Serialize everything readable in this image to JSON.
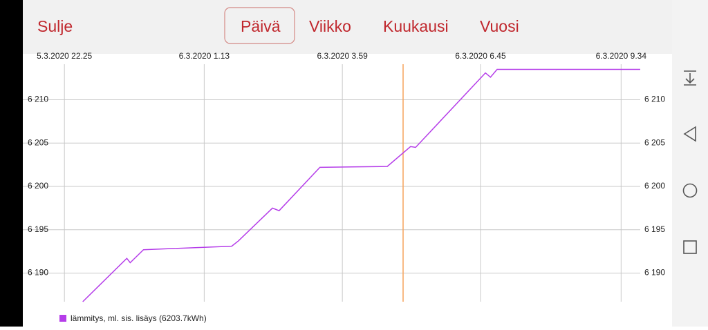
{
  "app_bar": {
    "close": "Sulje",
    "tabs": [
      "Päivä",
      "Viikko",
      "Kuukausi",
      "Vuosi"
    ],
    "selected_tab": 0
  },
  "chart_data": {
    "type": "line",
    "xlim": [
      "5.3.2020 21.35",
      "6.3.2020 9.57"
    ],
    "xticks": [
      "5.3.2020 22.25",
      "6.3.2020 1.13",
      "6.3.2020 3.59",
      "6.3.2020 6.45",
      "6.3.2020 9.34"
    ],
    "ylim": [
      6186.7,
      6214.1
    ],
    "yticks": [
      {
        "value": 6190,
        "label": "6 190"
      },
      {
        "value": 6195,
        "label": "6 195"
      },
      {
        "value": 6200,
        "label": "6 200"
      },
      {
        "value": 6205,
        "label": "6 205"
      },
      {
        "value": 6210,
        "label": "6 210"
      }
    ],
    "grid": true,
    "cursor": "6.3.2020 5.12",
    "cursor_color": "#f5a35c",
    "x": [
      "5.3.2020 22.47",
      "5.3.2020 23.40",
      "5.3.2020 23.44",
      "6.3.2020 0.00",
      "6.3.2020 1.46",
      "6.3.2020 1.54",
      "6.3.2020 2.35",
      "6.3.2020 2.43",
      "6.3.2020 3.32",
      "6.3.2020 4.53",
      "6.3.2020 5.21",
      "6.3.2020 5.27",
      "6.3.2020 6.51",
      "6.3.2020 6.57",
      "6.3.2020 7.05",
      "6.3.2020 9.57"
    ],
    "series": [
      {
        "name": "lämmitys, ml. sis. lisäys (6203.7kWh)",
        "color": "#b53de9",
        "values": [
          6186.7,
          6191.7,
          6191.2,
          6192.7,
          6193.1,
          6193.7,
          6197.5,
          6197.2,
          6202.2,
          6202.3,
          6204.6,
          6204.5,
          6213.1,
          6212.6,
          6213.5,
          6213.5
        ]
      }
    ]
  }
}
